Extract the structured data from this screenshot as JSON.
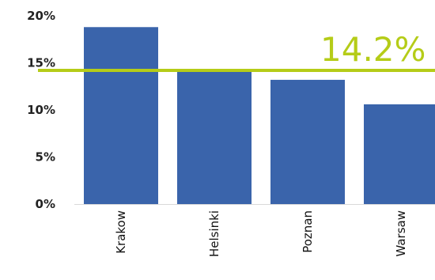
{
  "chart_data": {
    "type": "bar",
    "categories": [
      "Krakow",
      "Helsinki",
      "Poznan",
      "Warsaw"
    ],
    "values": [
      18.8,
      14.3,
      13.2,
      10.6
    ],
    "ylim": [
      0,
      20
    ],
    "yticks": [
      0,
      5,
      10,
      15,
      20
    ],
    "ytick_labels": [
      "0%",
      "5%",
      "10%",
      "15%",
      "20%"
    ],
    "reference_line": {
      "value": 14.2,
      "label": "14.2%"
    },
    "grid": false,
    "colors": {
      "bar": "#3a64ab",
      "reference": "#b5cc18"
    }
  }
}
